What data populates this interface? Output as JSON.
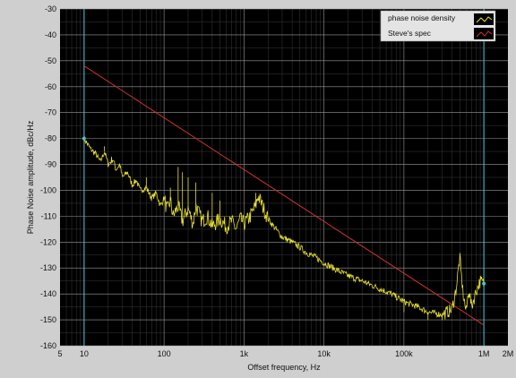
{
  "chart_data": {
    "type": "line",
    "xlabel": "Offset frequency, Hz",
    "ylabel": "Phase Noise amplitude, dBc/Hz",
    "xscale": "log",
    "xlim": [
      5,
      2000000
    ],
    "ylim": [
      -160,
      -30
    ],
    "grid": true,
    "legend_placement": "top-right",
    "x_ticks": [
      {
        "value": 5,
        "label": "5"
      },
      {
        "value": 10,
        "label": "10"
      },
      {
        "value": 100,
        "label": "100"
      },
      {
        "value": 1000,
        "label": "1k"
      },
      {
        "value": 10000,
        "label": "10k"
      },
      {
        "value": 100000,
        "label": "100k"
      },
      {
        "value": 1000000,
        "label": "1M"
      },
      {
        "value": 2000000,
        "label": "2M"
      }
    ],
    "y_ticks": [
      -30,
      -40,
      -50,
      -60,
      -70,
      -80,
      -90,
      -100,
      -110,
      -120,
      -130,
      -140,
      -150,
      -160
    ],
    "cursor_lines": [
      10,
      1000000
    ],
    "series": [
      {
        "name": "phase noise density",
        "color": "#e8e030",
        "points": [
          [
            10,
            -80
          ],
          [
            12,
            -84
          ],
          [
            14,
            -86
          ],
          [
            16,
            -89
          ],
          [
            18,
            -85
          ],
          [
            20,
            -90
          ],
          [
            23,
            -88
          ],
          [
            25,
            -92
          ],
          [
            28,
            -90
          ],
          [
            30,
            -95
          ],
          [
            35,
            -93
          ],
          [
            40,
            -98
          ],
          [
            45,
            -96
          ],
          [
            50,
            -100
          ],
          [
            60,
            -99
          ],
          [
            70,
            -103
          ],
          [
            80,
            -101
          ],
          [
            90,
            -106
          ],
          [
            100,
            -103
          ],
          [
            110,
            -108
          ],
          [
            120,
            -104
          ],
          [
            130,
            -110
          ],
          [
            150,
            -106
          ],
          [
            170,
            -112
          ],
          [
            200,
            -107
          ],
          [
            230,
            -113
          ],
          [
            250,
            -106
          ],
          [
            300,
            -112
          ],
          [
            350,
            -110
          ],
          [
            400,
            -114
          ],
          [
            500,
            -111
          ],
          [
            600,
            -114
          ],
          [
            700,
            -112
          ],
          [
            800,
            -115
          ],
          [
            900,
            -111
          ],
          [
            1000,
            -113
          ],
          [
            1200,
            -110
          ],
          [
            1400,
            -106
          ],
          [
            1500,
            -102
          ],
          [
            1700,
            -106
          ],
          [
            2000,
            -111
          ],
          [
            2500,
            -115
          ],
          [
            3000,
            -118
          ],
          [
            4000,
            -120
          ],
          [
            5000,
            -122
          ],
          [
            6000,
            -124
          ],
          [
            8000,
            -126
          ],
          [
            10000,
            -128
          ],
          [
            15000,
            -131
          ],
          [
            20000,
            -133
          ],
          [
            30000,
            -135
          ],
          [
            50000,
            -138
          ],
          [
            70000,
            -140
          ],
          [
            100000,
            -143
          ],
          [
            150000,
            -145
          ],
          [
            200000,
            -147
          ],
          [
            300000,
            -148
          ],
          [
            400000,
            -146
          ],
          [
            450000,
            -138
          ],
          [
            500000,
            -126
          ],
          [
            550000,
            -140
          ],
          [
            600000,
            -147
          ],
          [
            650000,
            -138
          ],
          [
            700000,
            -145
          ],
          [
            800000,
            -139
          ],
          [
            900000,
            -135
          ],
          [
            1000000,
            -136
          ]
        ],
        "spikes": [
          [
            18,
            -83
          ],
          [
            22,
            -87
          ],
          [
            60,
            -95
          ],
          [
            120,
            -99
          ],
          [
            150,
            -91
          ],
          [
            170,
            -93
          ],
          [
            200,
            -95
          ],
          [
            250,
            -97
          ],
          [
            400,
            -101
          ],
          [
            500,
            -104
          ],
          [
            1400,
            -101
          ],
          [
            100000,
            -147
          ],
          [
            150000,
            -144
          ],
          [
            200000,
            -150
          ],
          [
            300000,
            -150
          ]
        ]
      },
      {
        "name": "Steve's spec",
        "color": "#d03030",
        "points": [
          [
            10,
            -52
          ],
          [
            1000000,
            -152
          ]
        ]
      }
    ]
  },
  "legend": [
    {
      "label": "phase noise density",
      "color": "#e8e030"
    },
    {
      "label": "Steve's spec",
      "color": "#d03030"
    }
  ]
}
